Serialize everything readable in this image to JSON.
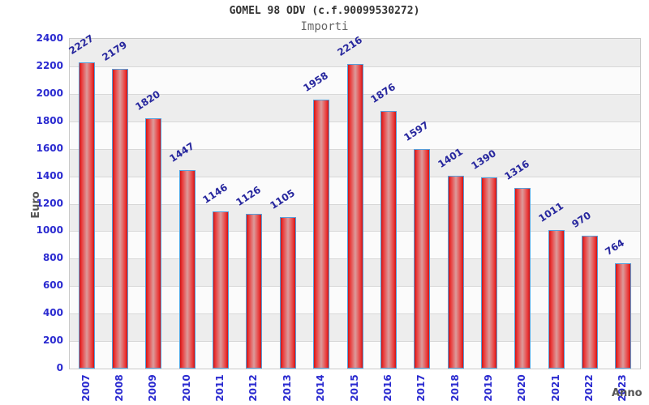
{
  "chart_data": {
    "type": "bar",
    "title": "GOMEL 98 ODV (c.f.90099530272)",
    "subtitle": "Importi",
    "xlabel": "Anno",
    "ylabel": "Euro",
    "categories": [
      "2007",
      "2008",
      "2009",
      "2010",
      "2011",
      "2012",
      "2013",
      "2014",
      "2015",
      "2016",
      "2017",
      "2018",
      "2019",
      "2020",
      "2021",
      "2022",
      "2023"
    ],
    "values": [
      2227,
      2179,
      1820,
      1447,
      1146,
      1126,
      1105,
      1958,
      2216,
      1876,
      1597,
      1401,
      1390,
      1316,
      1011,
      970,
      764
    ],
    "ylim": [
      0,
      2400
    ],
    "ytick_step": 200,
    "grid": true,
    "legend": "none",
    "colors": {
      "bar_edge": "#cf1414",
      "bar_highlight": "#dc9b9b",
      "bar_border": "#56a0dc",
      "tick_label": "#2a2ad0",
      "value_label": "#27279e",
      "band_light": "#fbfbfb",
      "band_dark": "#ededed",
      "gridline": "#d8d8d8",
      "title": "#333333",
      "subtitle": "#666666",
      "axis_title": "#555555"
    }
  }
}
